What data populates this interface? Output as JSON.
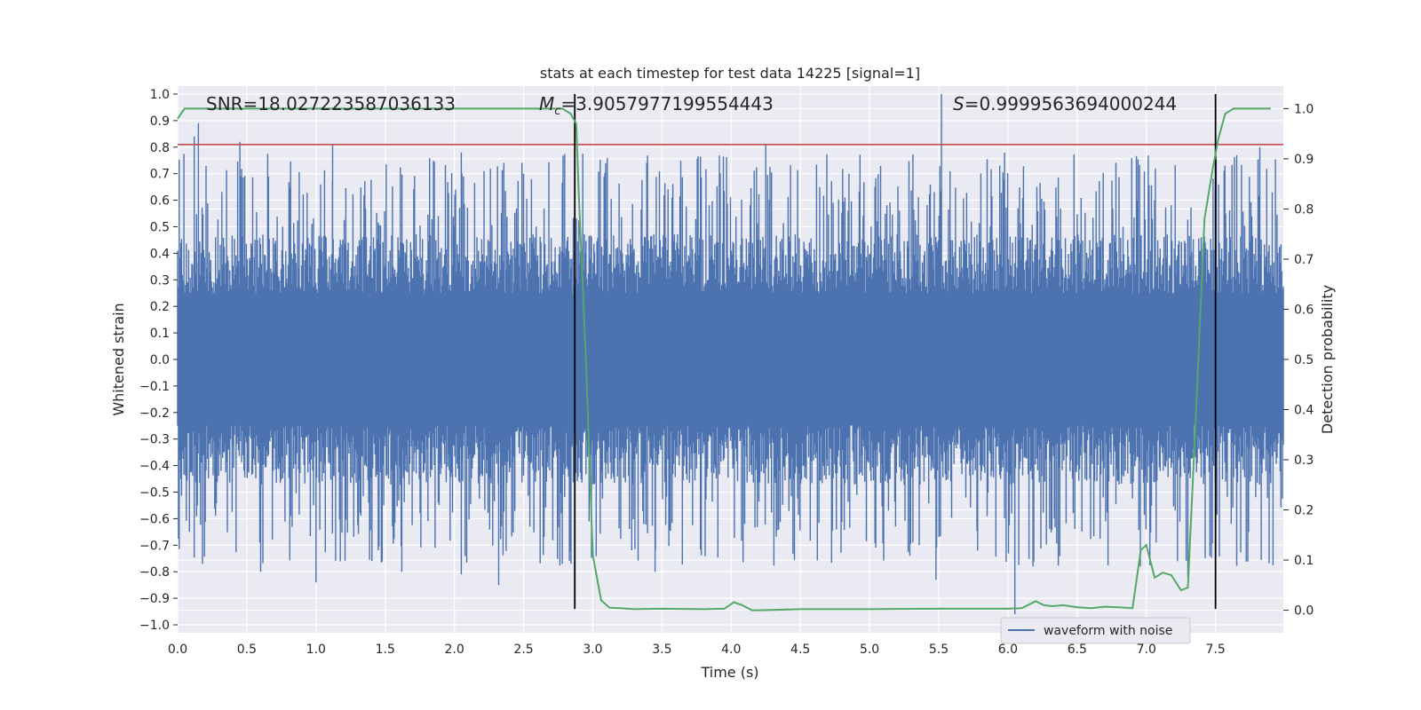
{
  "chart_data": {
    "type": "line",
    "title": "stats at each timestep for test data 14225 [signal=1]",
    "xlabel": "Time (s)",
    "ylabel": "Whitened strain",
    "ylabel_right": "Detection probability",
    "xlim": [
      0.0,
      7.99
    ],
    "ylim": [
      -1.03,
      1.03
    ],
    "ylim_right": [
      -0.045,
      1.045
    ],
    "x_ticks": [
      0.0,
      0.5,
      1.0,
      1.5,
      2.0,
      2.5,
      3.0,
      3.5,
      4.0,
      4.5,
      5.0,
      5.5,
      6.0,
      6.5,
      7.0,
      7.5
    ],
    "x_tick_labels": [
      "0.0",
      "0.5",
      "1.0",
      "1.5",
      "2.0",
      "2.5",
      "3.0",
      "3.5",
      "4.0",
      "4.5",
      "5.0",
      "5.5",
      "6.0",
      "6.5",
      "7.0",
      "7.5"
    ],
    "y_ticks": [
      1.0,
      0.9,
      0.8,
      0.7,
      0.6,
      0.5,
      0.4,
      0.3,
      0.2,
      0.1,
      0.0,
      -0.1,
      -0.2,
      -0.3,
      -0.4,
      -0.5,
      -0.6,
      -0.7,
      -0.8,
      -0.9,
      -1.0
    ],
    "y_tick_labels": [
      "1.0",
      "0.9",
      "0.8",
      "0.7",
      "0.6",
      "0.5",
      "0.4",
      "0.3",
      "0.2",
      "0.1",
      "0.0",
      "−0.1",
      "−0.2",
      "−0.3",
      "−0.4",
      "−0.5",
      "−0.6",
      "−0.7",
      "−0.8",
      "−0.9",
      "−1.0"
    ],
    "y_right_ticks": [
      1.0,
      0.9,
      0.8,
      0.7,
      0.6,
      0.5,
      0.4,
      0.3,
      0.2,
      0.1,
      0.0
    ],
    "y_right_tick_labels": [
      "1.0",
      "0.9",
      "0.8",
      "0.7",
      "0.6",
      "0.5",
      "0.4",
      "0.3",
      "0.2",
      "0.1",
      "0.0"
    ],
    "annotations": {
      "snr": "SNR=18.027223587036133",
      "mc_symbol": "M",
      "mc_sub": "c",
      "mc_value": "=3.9057977199554443",
      "s_symbol": "S",
      "s_value": "=0.9999563694000244"
    },
    "threshold_line": {
      "y": 0.81,
      "color": "#c44e52"
    },
    "vertical_lines": [
      2.87,
      7.5
    ],
    "series": [
      {
        "name": "waveform with noise",
        "color": "#4c72b0",
        "kind": "noise_band",
        "core_amplitude": 0.45,
        "upper_peaks": [
          [
            0.12,
            0.84
          ],
          [
            0.15,
            0.89
          ],
          [
            0.45,
            0.82
          ],
          [
            1.12,
            0.81
          ],
          [
            2.05,
            0.78
          ],
          [
            4.25,
            0.81
          ],
          [
            5.52,
            1.0
          ],
          [
            7.82,
            0.8
          ]
        ],
        "lower_peaks": [
          [
            0.18,
            -0.77
          ],
          [
            0.6,
            -0.8
          ],
          [
            1.0,
            -0.84
          ],
          [
            1.62,
            -0.8
          ],
          [
            2.05,
            -0.81
          ],
          [
            2.32,
            -0.85
          ],
          [
            3.45,
            -0.8
          ],
          [
            5.48,
            -0.83
          ],
          [
            6.05,
            -0.96
          ],
          [
            7.3,
            -0.82
          ]
        ]
      },
      {
        "name": "detection probability",
        "color": "#55a868",
        "axis": "right",
        "x": [
          0.0,
          0.05,
          0.1,
          2.7,
          2.78,
          2.84,
          2.88,
          2.9,
          2.95,
          3.0,
          3.06,
          3.12,
          3.2,
          3.3,
          3.5,
          3.8,
          3.95,
          4.02,
          4.08,
          4.15,
          4.2,
          4.5,
          5.0,
          5.5,
          6.0,
          6.1,
          6.2,
          6.26,
          6.32,
          6.4,
          6.5,
          6.6,
          6.7,
          6.8,
          6.9,
          6.96,
          7.0,
          7.06,
          7.12,
          7.18,
          7.25,
          7.3,
          7.36,
          7.42,
          7.48,
          7.52,
          7.57,
          7.63,
          7.7,
          7.75,
          7.9
        ],
        "y": [
          0.98,
          1.0,
          1.0,
          1.0,
          1.0,
          0.99,
          0.97,
          0.82,
          0.5,
          0.11,
          0.02,
          0.005,
          0.004,
          0.002,
          0.003,
          0.002,
          0.003,
          0.016,
          0.01,
          0.0,
          0.0,
          0.002,
          0.002,
          0.003,
          0.003,
          0.004,
          0.018,
          0.01,
          0.008,
          0.01,
          0.006,
          0.004,
          0.007,
          0.006,
          0.004,
          0.12,
          0.13,
          0.065,
          0.075,
          0.07,
          0.04,
          0.045,
          0.4,
          0.78,
          0.88,
          0.94,
          0.99,
          1.0,
          1.0,
          1.0,
          1.0
        ]
      }
    ],
    "legend": {
      "label": "waveform with noise",
      "position": "lower-right"
    },
    "grid": true
  }
}
